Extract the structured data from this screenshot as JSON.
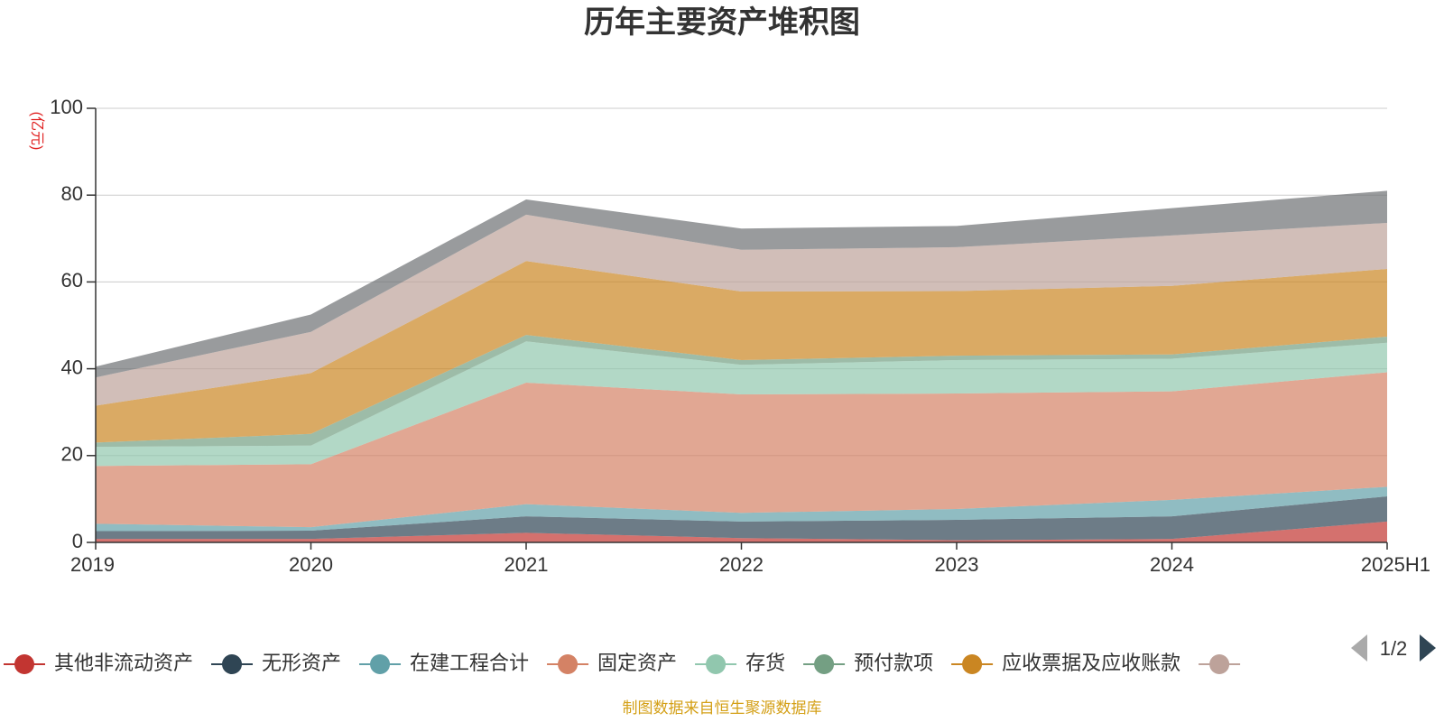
{
  "chart_data": {
    "type": "area",
    "stacked": true,
    "title": "历年主要资产堆积图",
    "ylabel": "(亿元)",
    "x": [
      "2019",
      "2020",
      "2021",
      "2022",
      "2023",
      "2024",
      "2025H1"
    ],
    "ylim": [
      0,
      100
    ],
    "yticks": [
      0,
      20,
      40,
      60,
      80,
      100
    ],
    "grid": true,
    "legend_position": "bottom",
    "series": [
      {
        "name": "其他非流动资产",
        "color": "#c23531",
        "values": [
          0.8,
          0.8,
          2.2,
          1.0,
          0.5,
          0.8,
          4.8
        ]
      },
      {
        "name": "无形资产",
        "color": "#2f4554",
        "values": [
          1.8,
          1.9,
          3.8,
          3.8,
          4.7,
          5.2,
          5.8
        ]
      },
      {
        "name": "在建工程合计",
        "color": "#61a0a8",
        "values": [
          1.7,
          0.8,
          2.8,
          2.0,
          2.5,
          3.8,
          2.2
        ]
      },
      {
        "name": "固定资产",
        "color": "#d48265",
        "values": [
          13.3,
          14.5,
          28.0,
          27.3,
          26.6,
          25.0,
          26.4
        ]
      },
      {
        "name": "存货",
        "color": "#91c7ae",
        "values": [
          4.4,
          4.3,
          9.5,
          6.8,
          7.7,
          7.5,
          6.8
        ]
      },
      {
        "name": "预付款项",
        "color": "#749f83",
        "values": [
          1.0,
          2.7,
          1.5,
          1.1,
          1.0,
          1.0,
          1.4
        ]
      },
      {
        "name": "应收票据及应收账款",
        "color": "#ca8622",
        "values": [
          8.5,
          14.0,
          17.0,
          15.8,
          14.9,
          15.8,
          15.6
        ]
      },
      {
        "name": "",
        "color": "#bda29a",
        "values": [
          6.5,
          9.5,
          10.7,
          9.6,
          10.1,
          11.6,
          10.6
        ]
      },
      {
        "name": "",
        "color": "#6e7074",
        "values": [
          2.5,
          4.0,
          3.5,
          4.9,
          4.9,
          6.3,
          7.4
        ]
      }
    ]
  },
  "legend": {
    "page": "1/2"
  },
  "source_note": "制图数据来自恒生聚源数据库"
}
